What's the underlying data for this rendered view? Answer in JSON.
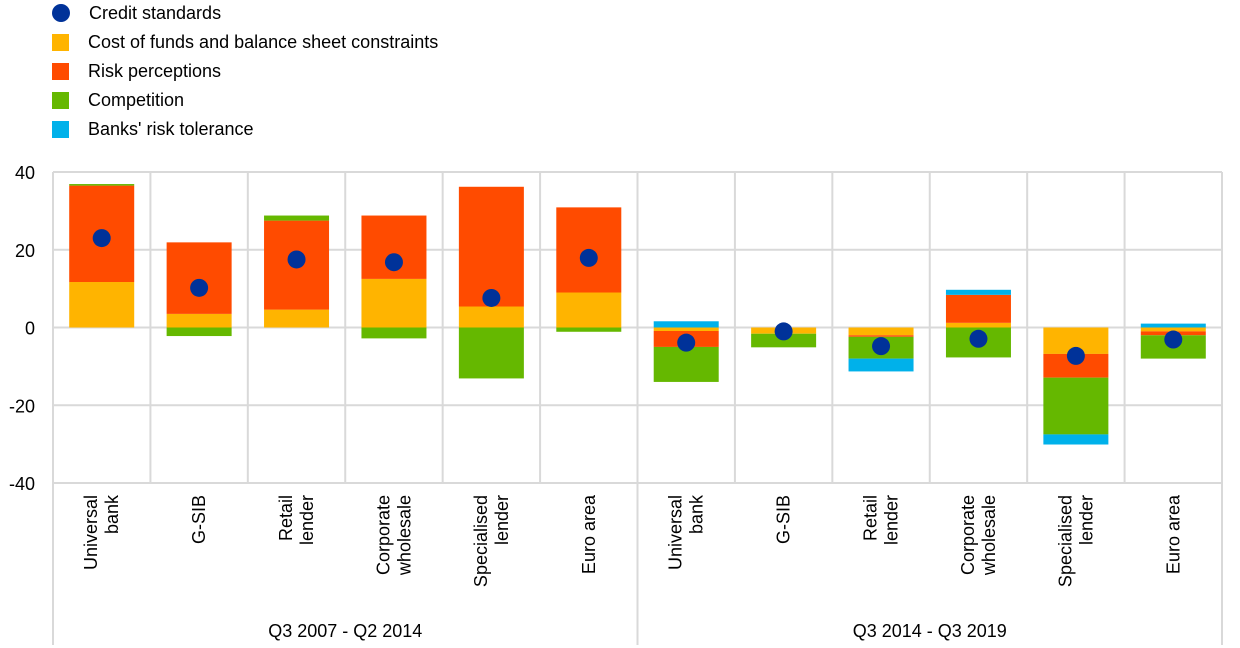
{
  "chart_data": {
    "type": "bar",
    "stacked": true,
    "title": "",
    "xlabel": "",
    "ylabel": "",
    "ylim": [
      -40,
      40
    ],
    "yticks": [
      40,
      20,
      0,
      -20,
      -40
    ],
    "grid": true,
    "legend_position": "top-left",
    "groups": [
      {
        "label": "Q3 2007 - Q2 2014",
        "categories": [
          [
            "Universal",
            "bank"
          ],
          [
            "G-SIB"
          ],
          [
            "Retail",
            "lender"
          ],
          [
            "Corporate",
            "wholesale"
          ],
          [
            "Specialised",
            "lender"
          ],
          [
            "Euro area"
          ]
        ]
      },
      {
        "label": "Q3 2014 - Q3 2019",
        "categories": [
          [
            "Universal",
            "bank"
          ],
          [
            "G-SIB"
          ],
          [
            "Retail",
            "lender"
          ],
          [
            "Corporate",
            "wholesale"
          ],
          [
            "Specialised",
            "lender"
          ],
          [
            "Euro area"
          ]
        ]
      }
    ],
    "categories": [
      "Universal bank (Q3 2007 - Q2 2014)",
      "G-SIB (Q3 2007 - Q2 2014)",
      "Retail lender (Q3 2007 - Q2 2014)",
      "Corporate wholesale (Q3 2007 - Q2 2014)",
      "Specialised lender (Q3 2007 - Q2 2014)",
      "Euro area (Q3 2007 - Q2 2014)",
      "Universal bank (Q3 2014 - Q3 2019)",
      "G-SIB (Q3 2014 - Q3 2019)",
      "Retail lender (Q3 2014 - Q3 2019)",
      "Corporate wholesale (Q3 2014 - Q3 2019)",
      "Specialised lender (Q3 2014 - Q3 2019)",
      "Euro area (Q3 2014 - Q3 2019)"
    ],
    "series": [
      {
        "name": "Cost of funds and balance sheet constraints",
        "kind": "bar",
        "color": "#FFB400",
        "values": [
          11.7,
          3.5,
          4.6,
          12.5,
          5.4,
          9.0,
          -0.9,
          -1.6,
          -2.0,
          1.2,
          -6.8,
          -1.0
        ]
      },
      {
        "name": "Risk perceptions",
        "kind": "bar",
        "color": "#FF4B00",
        "values": [
          24.8,
          18.4,
          22.9,
          16.3,
          30.8,
          21.9,
          -4.1,
          0.0,
          -0.4,
          7.2,
          -6.1,
          -1.0
        ]
      },
      {
        "name": "Competition",
        "kind": "bar",
        "color": "#65B800",
        "values": [
          0.4,
          -2.2,
          1.3,
          -2.8,
          -13.1,
          -1.1,
          -9.0,
          -3.5,
          -5.6,
          -7.7,
          -14.6,
          -6.0
        ]
      },
      {
        "name": "Banks' risk tolerance",
        "kind": "bar",
        "color": "#00B1EA",
        "values": [
          0.0,
          0.0,
          0.0,
          0.0,
          0.0,
          0.0,
          1.6,
          0.0,
          -3.3,
          1.3,
          -2.6,
          1.0
        ]
      },
      {
        "name": "Credit standards",
        "kind": "dot",
        "color": "#003299",
        "values": [
          23.0,
          10.2,
          17.5,
          16.8,
          7.6,
          17.9,
          -3.9,
          -1.0,
          -4.8,
          -2.9,
          -7.3,
          -3.1
        ]
      }
    ]
  },
  "legend": [
    {
      "label": "Credit standards",
      "color": "#003299",
      "shape": "dot"
    },
    {
      "label": "Cost of funds and balance sheet constraints",
      "color": "#FFB400",
      "shape": "square"
    },
    {
      "label": "Risk perceptions",
      "color": "#FF4B00",
      "shape": "square"
    },
    {
      "label": "Competition",
      "color": "#65B800",
      "shape": "square"
    },
    {
      "label": "Banks' risk tolerance",
      "color": "#00B1EA",
      "shape": "square"
    }
  ],
  "colors": {
    "grid": "#D9D9D9",
    "text": "#000000"
  }
}
